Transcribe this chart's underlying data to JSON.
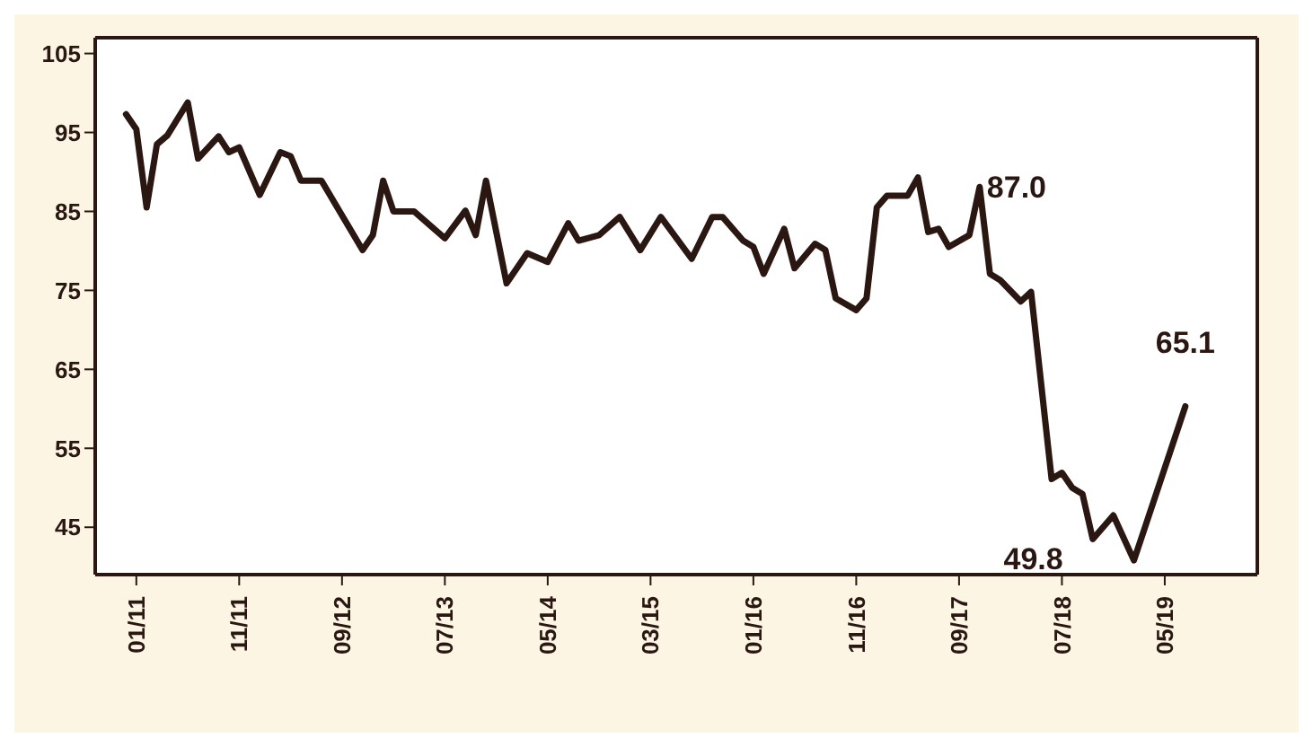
{
  "chart_data": {
    "type": "line",
    "x": [
      "2010-12",
      "2011-01",
      "2011-02",
      "2011-03",
      "2011-04",
      "2011-06",
      "2011-07",
      "2011-09",
      "2011-10",
      "2011-11",
      "2012-01",
      "2012-03",
      "2012-04",
      "2012-05",
      "2012-07",
      "2012-11",
      "2012-12",
      "2013-01",
      "2013-02",
      "2013-04",
      "2013-07",
      "2013-09",
      "2013-10",
      "2013-11",
      "2014-01",
      "2014-03",
      "2014-05",
      "2014-07",
      "2014-08",
      "2014-10",
      "2014-12",
      "2015-02",
      "2015-04",
      "2015-07",
      "2015-09",
      "2015-10",
      "2015-12",
      "2016-01",
      "2016-02",
      "2016-04",
      "2016-05",
      "2016-07",
      "2016-08",
      "2016-09",
      "2016-11",
      "2016-12",
      "2017-01",
      "2017-02",
      "2017-04",
      "2017-05",
      "2017-06",
      "2017-07",
      "2017-08",
      "2017-10",
      "2017-11",
      "2017-12",
      "2018-01",
      "2018-03",
      "2018-04",
      "2018-06",
      "2018-07",
      "2018-08",
      "2018-09",
      "2018-10",
      "2018-12",
      "2019-02",
      "2019-07"
    ],
    "series": [
      {
        "color": "#2a1712",
        "values": [
          97.3,
          95.4,
          85.5,
          93.5,
          94.6,
          98.8,
          91.7,
          94.5,
          92.5,
          93.1,
          87.1,
          92.5,
          92,
          88.9,
          88.9,
          80.1,
          82,
          88.9,
          85,
          85,
          81.6,
          85.1,
          82,
          88.9,
          75.9,
          79.7,
          78.6,
          83.5,
          81.3,
          82,
          84.3,
          80.1,
          84.3,
          79,
          84.3,
          84.3,
          81.3,
          80.5,
          77.1,
          82.8,
          77.8,
          80.9,
          80.1,
          74,
          72.5,
          74,
          85.5,
          87,
          87,
          89.3,
          82.4,
          82.8,
          80.5,
          82,
          88.1,
          77.1,
          76.3,
          73.6,
          74.8,
          51.1,
          51.9,
          50,
          49.2,
          43.5,
          46.5,
          40.8,
          60.3
        ]
      }
    ],
    "xlim": [
      "2010-09",
      "2020-02"
    ],
    "xticks": [
      {
        "value": "2011-01",
        "label": "01/11"
      },
      {
        "value": "2011-11",
        "label": "11/11"
      },
      {
        "value": "2012-09",
        "label": "09/12"
      },
      {
        "value": "2013-07",
        "label": "07/13"
      },
      {
        "value": "2014-05",
        "label": "05/14"
      },
      {
        "value": "2015-03",
        "label": "03/15"
      },
      {
        "value": "2016-01",
        "label": "01/16"
      },
      {
        "value": "2016-11",
        "label": "11/16"
      },
      {
        "value": "2017-09",
        "label": "09/17"
      },
      {
        "value": "2018-07",
        "label": "07/18"
      },
      {
        "value": "2019-05",
        "label": "05/19"
      }
    ],
    "ylim": [
      39,
      107
    ],
    "yticks": [
      45,
      55,
      65,
      75,
      85,
      95,
      105
    ],
    "annotations": [
      {
        "text": "87.0",
        "x": "2017-11",
        "y": 88.1
      },
      {
        "text": "49.8",
        "x": "2019-02",
        "y": 40.8
      },
      {
        "text": "65.1",
        "x": "2019-07",
        "y": 60.3
      }
    ]
  }
}
